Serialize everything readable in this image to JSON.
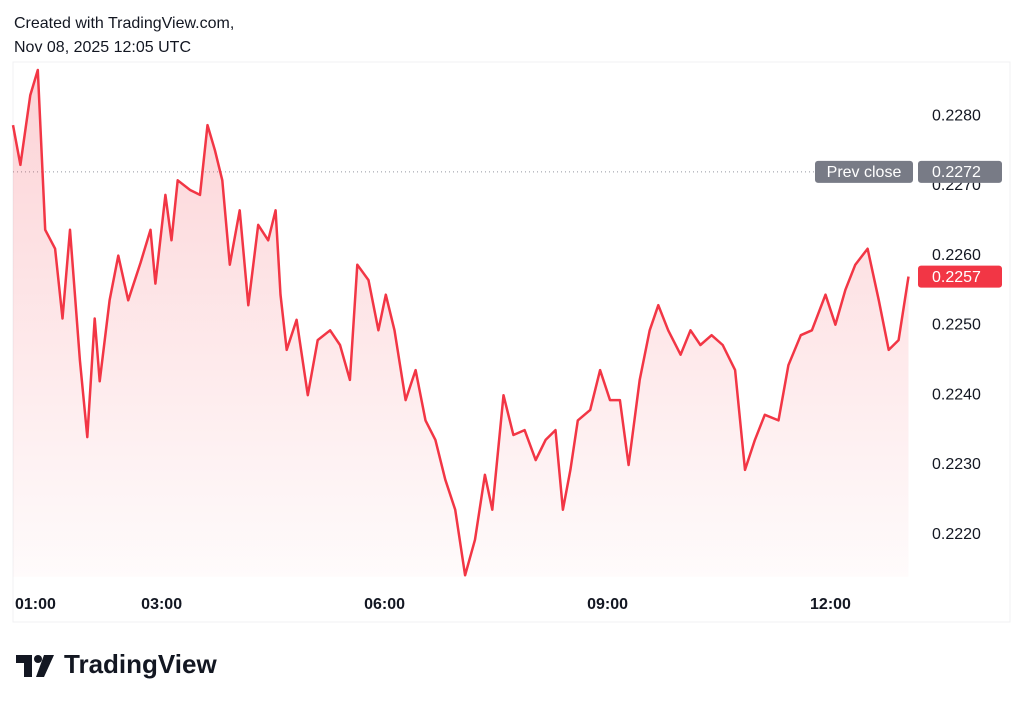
{
  "header": {
    "line1": "Created with TradingView.com,",
    "line2": "Nov 08, 2025 12:05 UTC"
  },
  "footer": {
    "brand": "TradingView"
  },
  "chart_data": {
    "type": "line",
    "color": "#f23645",
    "x": [
      "01:00",
      "01:06",
      "01:14",
      "01:20",
      "01:26",
      "01:34",
      "01:40",
      "01:46",
      "01:54",
      "02:00",
      "02:06",
      "02:10",
      "02:18",
      "02:25",
      "02:33",
      "02:43",
      "02:51",
      "02:55",
      "03:03",
      "03:08",
      "03:13",
      "03:23",
      "03:31",
      "03:37",
      "03:43",
      "03:49",
      "03:55",
      "04:03",
      "04:10",
      "04:18",
      "04:26",
      "04:32",
      "04:36",
      "04:41",
      "04:49",
      "04:58",
      "05:06",
      "05:16",
      "05:24",
      "05:32",
      "05:38",
      "05:47",
      "05:55",
      "06:01",
      "06:08",
      "06:17",
      "06:25",
      "06:33",
      "06:41",
      "06:49",
      "06:57",
      "07:05",
      "07:13",
      "07:21",
      "07:27",
      "07:36",
      "07:44",
      "07:53",
      "08:02",
      "08:10",
      "08:18",
      "08:24",
      "08:30",
      "08:36",
      "08:46",
      "08:54",
      "09:02",
      "09:10",
      "09:17",
      "09:26",
      "09:34",
      "09:41",
      "09:49",
      "09:59",
      "10:07",
      "10:15",
      "10:24",
      "10:33",
      "10:43",
      "10:51",
      "10:59",
      "11:07",
      "11:18",
      "11:26",
      "11:36",
      "11:45",
      "11:56",
      "12:04",
      "12:12",
      "12:20",
      "12:30",
      "12:39",
      "12:47",
      "12:55",
      "13:03"
    ],
    "values": [
      0.22787,
      0.2273,
      0.2283,
      0.22866,
      0.22637,
      0.2261,
      0.2251,
      0.22637,
      0.2245,
      0.2234,
      0.2251,
      0.2242,
      0.22536,
      0.226,
      0.22536,
      0.2259,
      0.22637,
      0.2256,
      0.22687,
      0.22622,
      0.22708,
      0.22694,
      0.22687,
      0.22787,
      0.22751,
      0.22708,
      0.22587,
      0.22665,
      0.22529,
      0.22644,
      0.22622,
      0.22665,
      0.22544,
      0.22465,
      0.22508,
      0.224,
      0.22479,
      0.22493,
      0.22472,
      0.22422,
      0.22587,
      0.22565,
      0.22493,
      0.22544,
      0.22493,
      0.22393,
      0.22436,
      0.22364,
      0.22336,
      0.22279,
      0.22236,
      0.22142,
      0.22193,
      0.22286,
      0.22236,
      0.224,
      0.22343,
      0.2235,
      0.22307,
      0.22336,
      0.2235,
      0.22236,
      0.22293,
      0.22364,
      0.22379,
      0.22436,
      0.22393,
      0.22393,
      0.223,
      0.22422,
      0.22493,
      0.22529,
      0.22493,
      0.22458,
      0.22493,
      0.22472,
      0.22486,
      0.22472,
      0.22436,
      0.22293,
      0.22336,
      0.22372,
      0.22364,
      0.22443,
      0.22486,
      0.22493,
      0.22544,
      0.22501,
      0.22551,
      0.22587,
      0.2261,
      0.22536,
      0.22465,
      0.22479,
      0.2257
    ],
    "xlim": [
      "01:00",
      "13:05"
    ],
    "xticks": [
      "01:00",
      "03:00",
      "06:00",
      "09:00",
      "12:00"
    ],
    "ylim": [
      0.2214,
      0.2288
    ],
    "yticks": [
      {
        "value": 0.222,
        "label": "0.2220"
      },
      {
        "value": 0.223,
        "label": "0.2230"
      },
      {
        "value": 0.224,
        "label": "0.2240"
      },
      {
        "value": 0.225,
        "label": "0.2250"
      },
      {
        "value": 0.226,
        "label": "0.2260"
      },
      {
        "value": 0.227,
        "label": "0.2270"
      },
      {
        "value": 0.228,
        "label": "0.2280"
      }
    ],
    "prev_close": {
      "label": "Prev close",
      "value": 0.2272
    }
  }
}
